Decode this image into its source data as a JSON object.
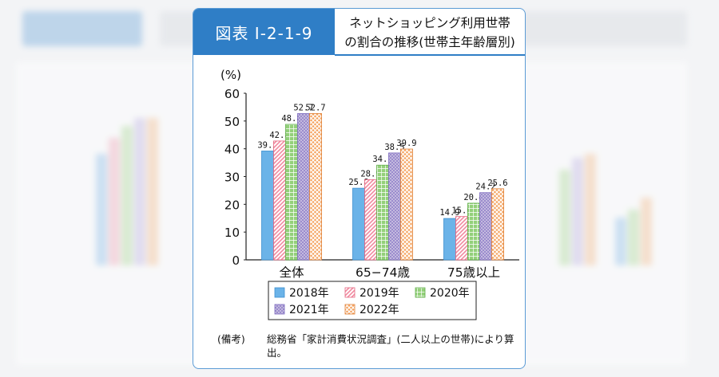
{
  "figure_label": "図表 I-2-1-9",
  "figure_title_line1": "ネットショッピング利用世帯",
  "figure_title_line2": "の割合の推移(世帯主年齢層別)",
  "note_label": "(備考)",
  "note_text": "総務省「家計消費状況調査」(二人以上の世帯)により算出。",
  "colors": {
    "header_bg": "#2f7ec6",
    "border": "#5b9bd5",
    "2018": "#6bb3e8",
    "2019": "#f28aa0",
    "2020": "#93d07a",
    "2021": "#a99ad8",
    "2022": "#f5a05a"
  },
  "chart_data": {
    "type": "bar",
    "title": "",
    "ylabel": "(%)",
    "xlabel": "",
    "ylim": [
      0,
      60
    ],
    "yticks": [
      0,
      10,
      20,
      30,
      40,
      50,
      60
    ],
    "categories": [
      "全体",
      "65−74歳",
      "75歳以上"
    ],
    "series": [
      {
        "name": "2018年",
        "values": [
          39.2,
          25.8,
          14.9
        ],
        "labels": [
          "39.2",
          "25.8",
          "14.9"
        ],
        "pattern": "solid"
      },
      {
        "name": "2019年",
        "values": [
          42.8,
          28.9,
          15.6
        ],
        "labels": [
          "42.8",
          "28.9",
          "15.6"
        ],
        "pattern": "diagonal"
      },
      {
        "name": "2020年",
        "values": [
          48.8,
          34.1,
          20.4
        ],
        "labels": [
          "48.8",
          "34.1",
          "20.4"
        ],
        "pattern": "grid"
      },
      {
        "name": "2021年",
        "values": [
          52.7,
          38.5,
          24.2
        ],
        "labels": [
          "52.7",
          "38.5",
          "24.2"
        ],
        "pattern": "dots"
      },
      {
        "name": "2022年",
        "values": [
          52.7,
          39.9,
          25.6
        ],
        "labels": [
          "52.7",
          "39.9",
          "25.6"
        ],
        "pattern": "crosshatch"
      }
    ],
    "grid": false,
    "legend_position": "bottom"
  }
}
